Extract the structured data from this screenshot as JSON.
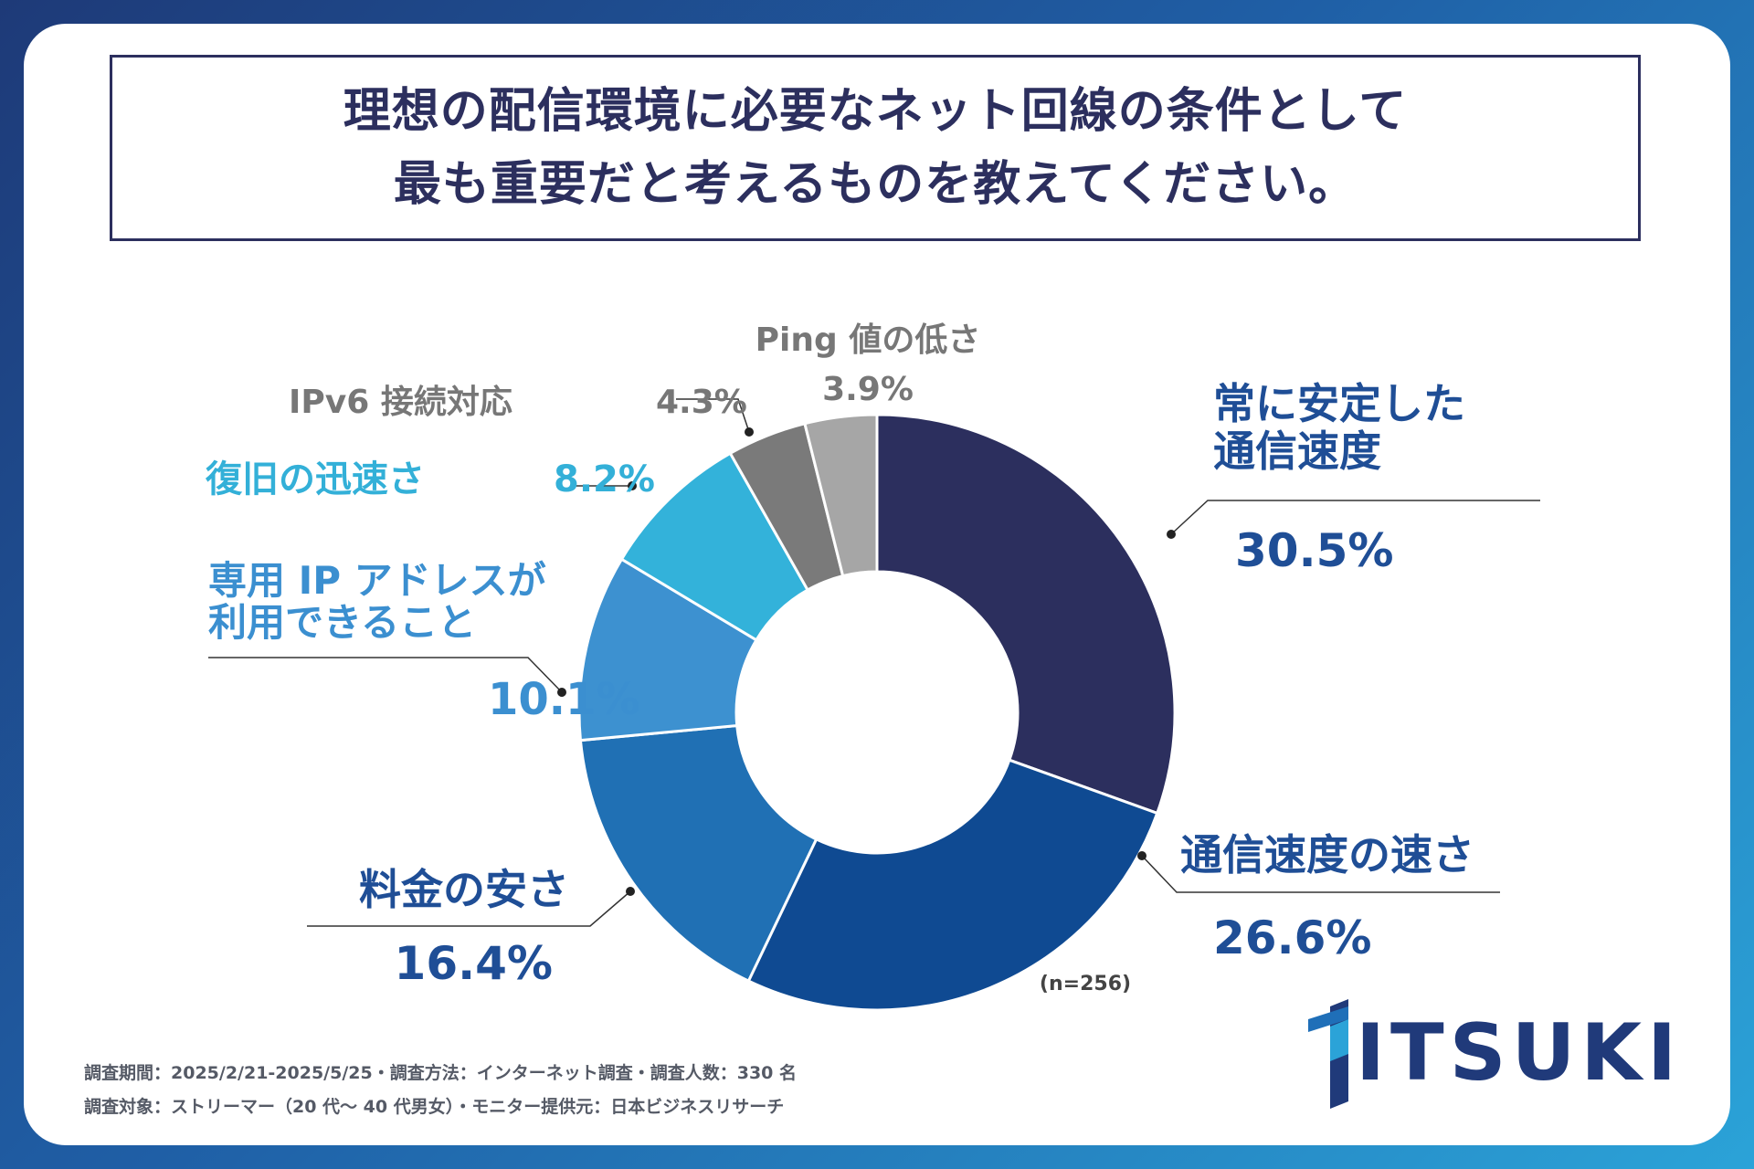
{
  "title": {
    "line1": "理想の配信環境に必要なネット回線の条件として",
    "line2": "最も重要だと考えるものを教えてください。"
  },
  "chart_data": {
    "type": "pie",
    "variant": "donut",
    "title": "理想の配信環境に必要なネット回線の条件として最も重要だと考えるものを教えてください。",
    "sample_note": "(n=256)",
    "slices": [
      {
        "label_lines": [
          "常に安定した",
          "通信速度"
        ],
        "value": 30.5,
        "value_label": "30.5%",
        "color": "#2c2f5e",
        "label_color": "#1f4e96"
      },
      {
        "label_lines": [
          "通信速度の速さ"
        ],
        "value": 26.6,
        "value_label": "26.6%",
        "color": "#0f4a92",
        "label_color": "#1f4e96"
      },
      {
        "label_lines": [
          "料金の安さ"
        ],
        "value": 16.4,
        "value_label": "16.4%",
        "color": "#2070b4",
        "label_color": "#1f4e96"
      },
      {
        "label_lines": [
          "専用 IP アドレスが",
          "利用できること"
        ],
        "value": 10.1,
        "value_label": "10.1%",
        "color": "#3d91d0",
        "label_color": "#3b8fd0"
      },
      {
        "label_lines": [
          "復旧の迅速さ"
        ],
        "value": 8.2,
        "value_label": "8.2%",
        "color": "#33b2da",
        "label_color": "#33b0d8"
      },
      {
        "label_lines": [
          "IPv6 接続対応"
        ],
        "value": 4.3,
        "value_label": "4.3%",
        "color": "#7a7a7a",
        "label_color": "#777777"
      },
      {
        "label_lines": [
          "Ping 値の低さ"
        ],
        "value": 3.9,
        "value_label": "3.9%",
        "color": "#a6a6a6",
        "label_color": "#777777"
      }
    ]
  },
  "footer": {
    "line1": "調査期間：2025/2/21-2025/5/25・調査方法：インターネット調査・調査人数：330 名",
    "line2": "調査対象：ストリーマー（20 代〜 40 代男女）・モニター提供元：日本ビジネスリサーチ"
  },
  "logo": {
    "text": "ITSUKI",
    "color": "#203a7a"
  }
}
